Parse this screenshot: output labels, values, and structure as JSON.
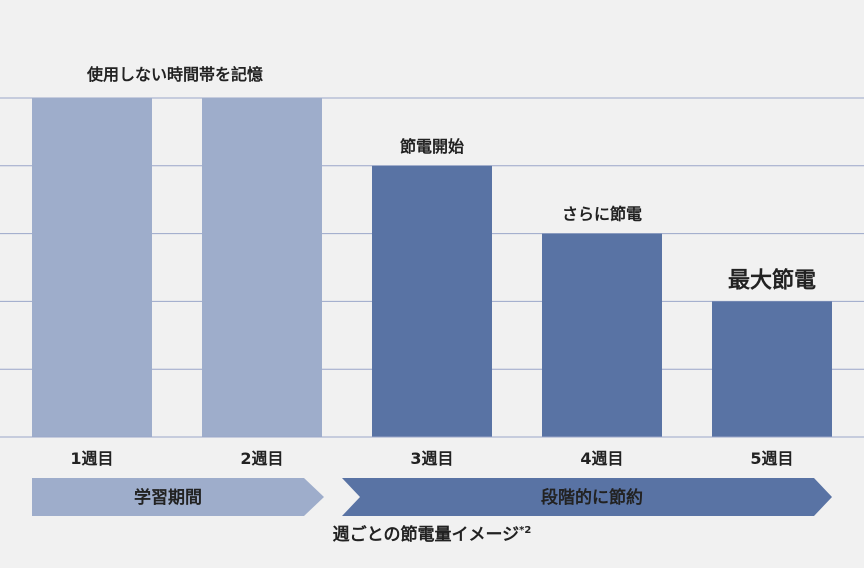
{
  "chart_data": {
    "type": "bar",
    "categories": [
      "1週目",
      "2週目",
      "3週目",
      "4週目",
      "5週目"
    ],
    "values": [
      5,
      5,
      4,
      3,
      2
    ],
    "ylim": [
      0,
      5
    ],
    "grid": true,
    "bar_labels": [
      "使用しない時間帯を記憶",
      "",
      "節電開始",
      "さらに節電",
      "最大節電"
    ],
    "phases": [
      {
        "label": "学習期間",
        "from_category": 0,
        "to_category": 1
      },
      {
        "label": "段階的に節約",
        "from_category": 2,
        "to_category": 4
      }
    ],
    "caption": "週ごとの節電量イメージ",
    "caption_note": "*2",
    "colors": {
      "learning": "#9eadcb",
      "saving": "#5973a4",
      "grid": "#9aa6c9",
      "background": "#f1f1f1"
    }
  }
}
